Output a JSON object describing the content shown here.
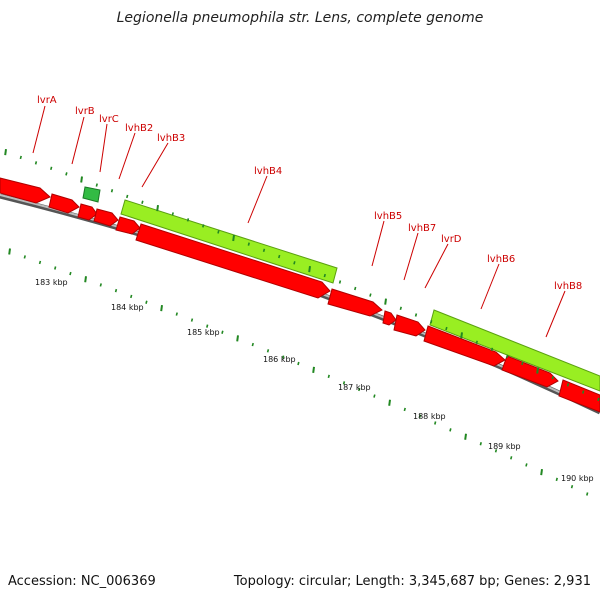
{
  "title": "Legionella pneumophila str. Lens, complete genome",
  "footer": {
    "accession": "Accession: NC_006369",
    "summary": "Topology: circular; Length: 3,345,687 bp; Genes: 2,931"
  },
  "colors": {
    "cds": "#ff0000",
    "cds_dark": "#b00000",
    "gene_block": "#99ee22",
    "small_gene": "#33bb44",
    "backbone": "#888888",
    "tick": "#228822",
    "label": "#cc0000"
  },
  "kbp_labels": [
    "183 kbp",
    "184 kbp",
    "185 kbp",
    "186 kbp",
    "187 kbp",
    "188 kbp",
    "189 kbp",
    "190 kbp"
  ],
  "gene_labels": [
    "lvrA",
    "lvrB",
    "lvrC",
    "lvhB2",
    "lvhB3",
    "lvhB4",
    "lvhB5",
    "lvhB7",
    "lvrD",
    "lvhB6",
    "lvhB8"
  ]
}
